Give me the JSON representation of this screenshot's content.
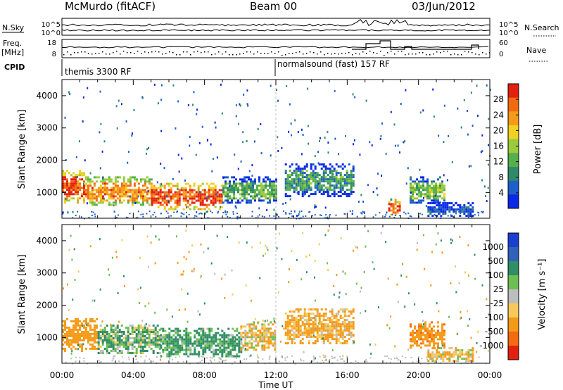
{
  "header": {
    "station": "McMurdo (fitACF)",
    "beam": "Beam 00",
    "date": "03/Jun/2012"
  },
  "status_panel": {
    "left_labels": [
      "N.Sky",
      "Freq.",
      "[MHz]",
      "CPID"
    ],
    "right_labels": [
      "N.Search",
      "Nave"
    ],
    "noise_ticks_left": [
      "10^5",
      "10^0"
    ],
    "noise_ticks_right": [
      "10^5",
      "10^0"
    ],
    "freq_ticks": [
      "18",
      "8"
    ],
    "nave_ticks": [
      "60",
      "0"
    ],
    "cpid_left": "themis 3300 RF",
    "cpid_right": "normalsound (fast) 157 RF"
  },
  "colors": {
    "power_scale": [
      "#0a28e6",
      "#1e5fc8",
      "#2f8a6a",
      "#53b04a",
      "#9acb3c",
      "#f0d020",
      "#f59a18",
      "#f26a10",
      "#e22010"
    ],
    "velocity_scale": [
      "#1a3fd0",
      "#2f62b8",
      "#2f8e65",
      "#6cbf52",
      "#bdbdbd",
      "#f6c95a",
      "#f59a18",
      "#f36a10",
      "#e2200f"
    ]
  },
  "chart_data": [
    {
      "type": "heatmap",
      "title": "",
      "ylabel": "Slant Range [km]",
      "yticks": [
        "1000",
        "2000",
        "3000",
        "4000"
      ],
      "ylim": [
        200,
        4500
      ],
      "xlim": [
        "00:00",
        "24:00"
      ],
      "colorbar": {
        "label": "Power [dB]",
        "ticks": [
          "4",
          "8",
          "12",
          "16",
          "20",
          "24",
          "28"
        ],
        "range": [
          0,
          32
        ]
      },
      "regions": [
        {
          "x": [
            0.0,
            1.3
          ],
          "y": [
            700,
            1700
          ],
          "value": 28
        },
        {
          "x": [
            1.3,
            5.0
          ],
          "y": [
            600,
            1500
          ],
          "value": 24
        },
        {
          "x": [
            5.0,
            9.0
          ],
          "y": [
            500,
            1300
          ],
          "value": 28
        },
        {
          "x": [
            9.0,
            12.0
          ],
          "y": [
            700,
            1500
          ],
          "value": 12
        },
        {
          "x": [
            12.5,
            16.3
          ],
          "y": [
            900,
            1900
          ],
          "value": 10
        },
        {
          "x": [
            18.3,
            19.0
          ],
          "y": [
            300,
            800
          ],
          "value": 28
        },
        {
          "x": [
            19.5,
            21.4
          ],
          "y": [
            700,
            1500
          ],
          "value": 14
        },
        {
          "x": [
            20.5,
            23.0
          ],
          "y": [
            300,
            700
          ],
          "value": 4
        }
      ]
    },
    {
      "type": "heatmap",
      "title": "",
      "ylabel": "Slant Range [km]",
      "xlabel": "Time UT",
      "xticks": [
        "00:00",
        "04:00",
        "08:00",
        "12:00",
        "16:00",
        "20:00",
        "00:00"
      ],
      "yticks": [
        "1000",
        "2000",
        "3000",
        "4000"
      ],
      "ylim": [
        200,
        4500
      ],
      "xlim": [
        "00:00",
        "24:00"
      ],
      "colorbar": {
        "label": "Velocity [m s⁻¹]",
        "ticks": [
          "1000",
          "500",
          "100",
          "25",
          "-25",
          "-100",
          "-500",
          "-1000"
        ],
        "range": [
          -1000,
          1000
        ]
      },
      "regions": [
        {
          "x": [
            0.0,
            2.0
          ],
          "y": [
            600,
            1600
          ],
          "value": -300
        },
        {
          "x": [
            2.0,
            5.5
          ],
          "y": [
            500,
            1400
          ],
          "value": 80
        },
        {
          "x": [
            5.5,
            10.0
          ],
          "y": [
            400,
            1300
          ],
          "value": 150
        },
        {
          "x": [
            10.0,
            12.0
          ],
          "y": [
            600,
            1500
          ],
          "value": -80
        },
        {
          "x": [
            12.5,
            16.3
          ],
          "y": [
            800,
            1900
          ],
          "value": -150
        },
        {
          "x": [
            19.5,
            21.4
          ],
          "y": [
            700,
            1500
          ],
          "value": -400
        },
        {
          "x": [
            20.5,
            23.0
          ],
          "y": [
            300,
            700
          ],
          "value": -50
        }
      ]
    }
  ]
}
